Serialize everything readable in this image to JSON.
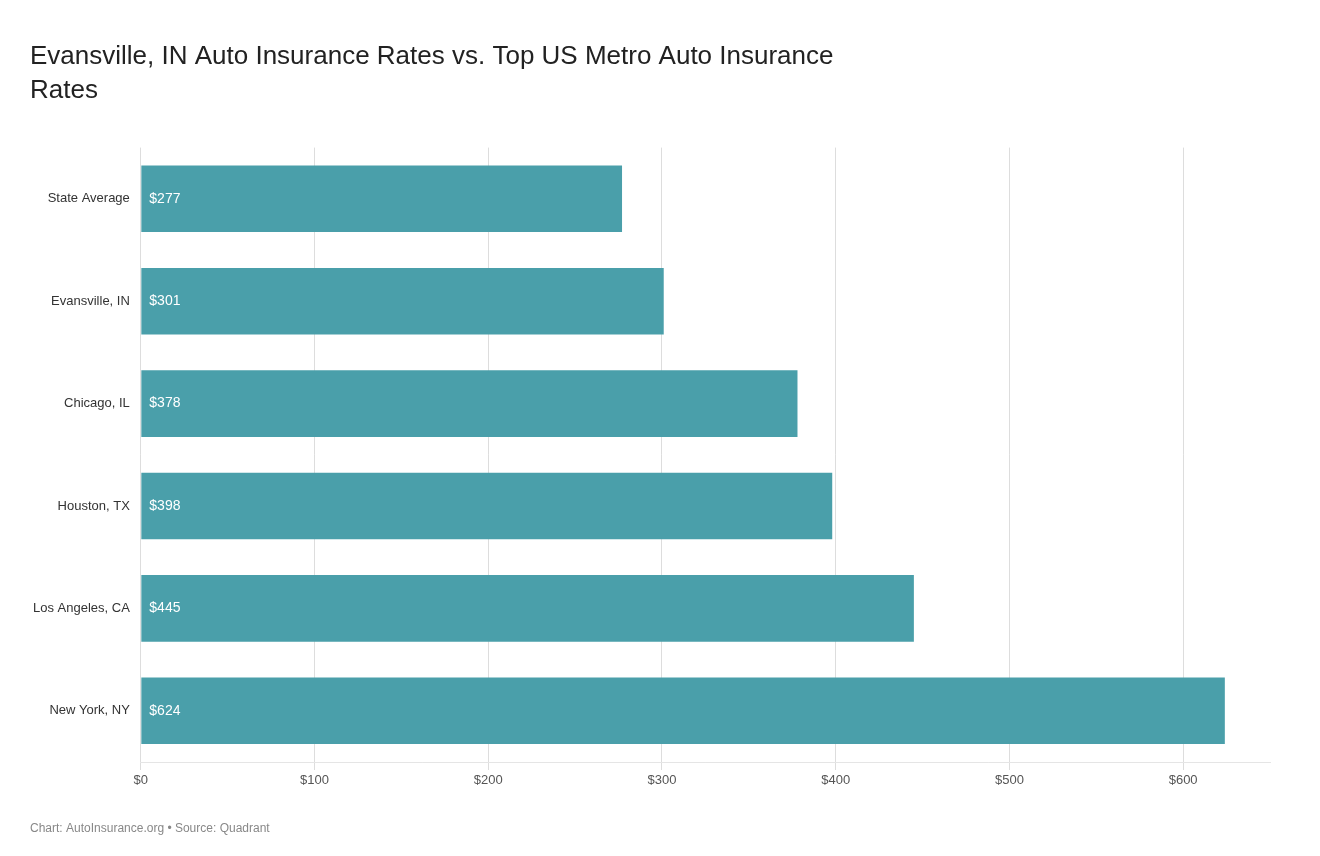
{
  "chart_data": {
    "type": "bar",
    "orientation": "horizontal",
    "title": "Evansville, IN Auto Insurance Rates vs. Top US Metro Auto Insurance\nRates",
    "annotations": [
      "Chart: AutoInsurance.org • Source: Quadrant"
    ],
    "categories": [
      "New York, NY",
      "Los Angeles, CA",
      "Houston, TX",
      "Chicago, IL",
      "Evansville, IN",
      "State Average"
    ],
    "values": [
      624,
      445,
      398,
      378,
      301,
      277
    ],
    "value_labels": [
      "$624",
      "$445",
      "$398",
      "$378",
      "$301",
      "$277"
    ],
    "data_labels": true,
    "color": "#4a9faa",
    "xlim": [
      0,
      650
    ],
    "xticks": [
      {
        "value": 0,
        "label": "$0"
      },
      {
        "value": 100,
        "label": "$100"
      },
      {
        "value": 200,
        "label": "$200"
      },
      {
        "value": 300,
        "label": "$300"
      },
      {
        "value": 400,
        "label": "$400"
      },
      {
        "value": 500,
        "label": "$500"
      },
      {
        "value": 600,
        "label": "$600"
      }
    ],
    "grid": true
  }
}
